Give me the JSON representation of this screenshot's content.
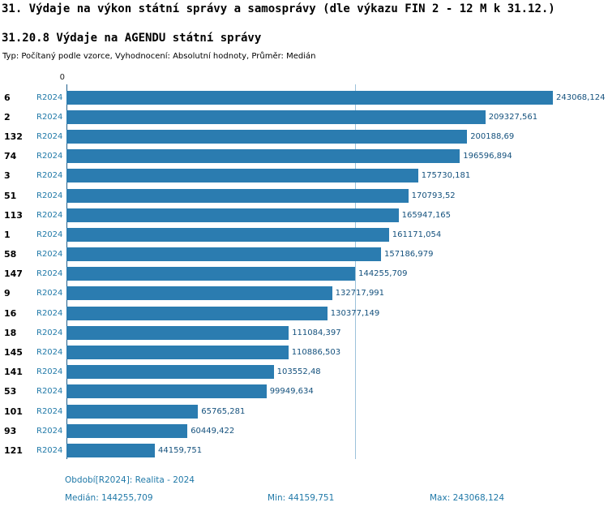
{
  "header": {
    "title": "31. Výdaje na výkon státní správy a samosprávy (dle výkazu FIN 2 - 12 M k 31.12.)",
    "subtitle": "31.20.8 Výdaje na AGENDU státní správy",
    "meta": "Typ: Počítaný podle vzorce, Vyhodnocení: Absolutní hodnoty, Průměr: Medián"
  },
  "chart_data": {
    "type": "bar",
    "orientation": "horizontal",
    "title": "31.20.8 Výdaje na AGENDU státní správy",
    "xlabel": "",
    "ylabel": "",
    "axis_zero_label": "0",
    "period_label": "R2024",
    "categories": [
      "6",
      "2",
      "132",
      "74",
      "3",
      "51",
      "113",
      "1",
      "58",
      "147",
      "9",
      "16",
      "18",
      "145",
      "141",
      "53",
      "101",
      "93",
      "121"
    ],
    "values": [
      243068.124,
      209327.561,
      200188.69,
      196596.894,
      175730.181,
      170793.52,
      165947.165,
      161171.054,
      157186.979,
      144255.709,
      132717.991,
      130377.149,
      111084.397,
      110886.503,
      103552.48,
      99949.634,
      65765.281,
      60449.422,
      44159.751
    ],
    "value_labels": [
      "243068,124",
      "209327,561",
      "200188,69",
      "196596,894",
      "175730,181",
      "170793,52",
      "165947,165",
      "161171,054",
      "157186,979",
      "144255,709",
      "132717,991",
      "130377,149",
      "111084,397",
      "110886,503",
      "103552,48",
      "99949,634",
      "65765,281",
      "60449,422",
      "44159,751"
    ],
    "xlim": [
      0,
      250000
    ],
    "median": 144255.709,
    "min": 44159.751,
    "max": 243068.124,
    "bar_color": "#2b7cb0",
    "median_line_color": "#9cc2da",
    "grid": false,
    "legend": false
  },
  "footer": {
    "period": "Období[R2024]: Realita - 2024",
    "median": "Medián: 144255,709",
    "min": "Min: 44159,751",
    "max": "Max: 243068,124"
  }
}
